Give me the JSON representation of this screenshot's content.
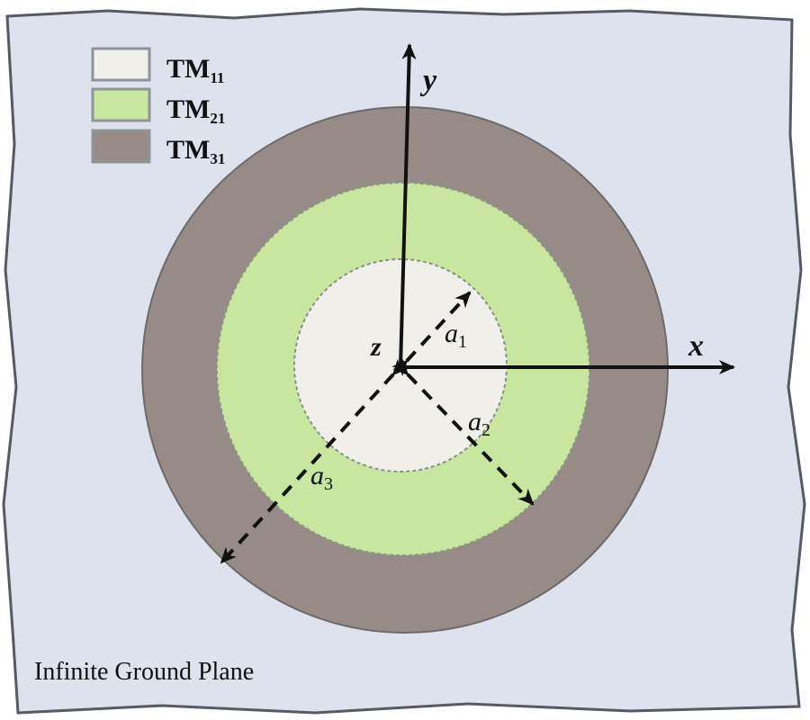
{
  "legend": [
    {
      "label": "TM",
      "sub": "11",
      "color": "#f1efea"
    },
    {
      "label": "TM",
      "sub": "21",
      "color": "#c8e6a0"
    },
    {
      "label": "TM",
      "sub": "31",
      "color": "#968b86"
    }
  ],
  "axes": {
    "x": "x",
    "y": "y",
    "z": "z"
  },
  "radii": [
    {
      "label": "a",
      "sub": "1"
    },
    {
      "label": "a",
      "sub": "2"
    },
    {
      "label": "a",
      "sub": "3"
    }
  ],
  "caption": "Infinite Ground Plane",
  "colors": {
    "ground_plane": "#dde2ec",
    "border": "#555a63"
  }
}
